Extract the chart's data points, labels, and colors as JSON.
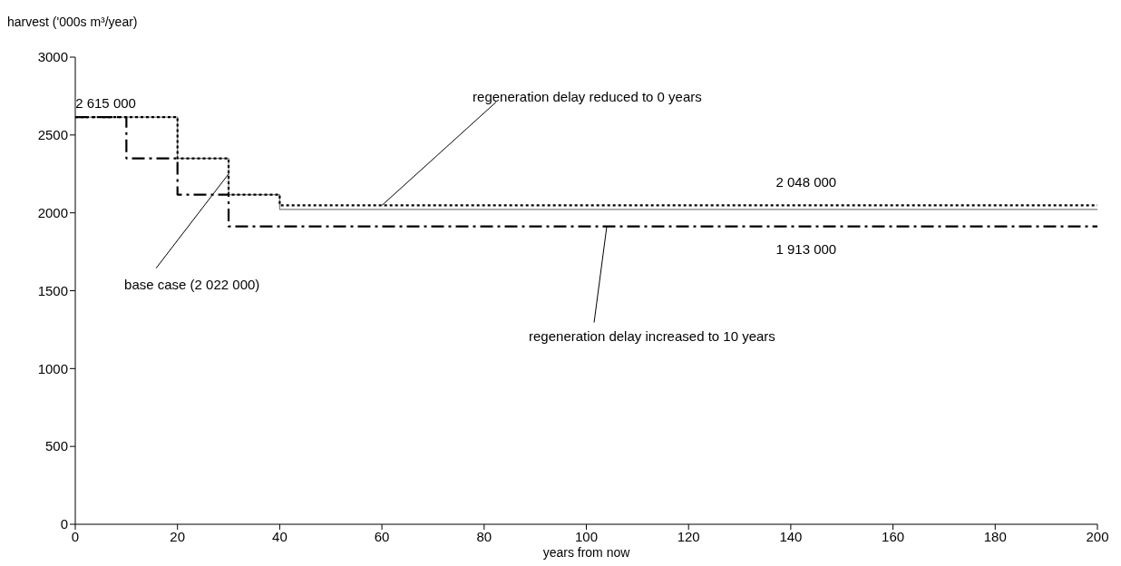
{
  "chart_data": {
    "type": "step",
    "xlabel": "years from now",
    "ylabel": "harvest ('000s m³/year)",
    "xlim": [
      0,
      200
    ],
    "xticks": [
      0,
      20,
      40,
      60,
      80,
      100,
      120,
      140,
      160,
      180,
      200
    ],
    "ylim": [
      0,
      3000
    ],
    "yticks": [
      0,
      500,
      1000,
      1500,
      2000,
      2500,
      3000
    ],
    "series": [
      {
        "color": "#808080",
        "line_style": "solid",
        "x": [
          0,
          20,
          30,
          40,
          200
        ],
        "values": [
          2615,
          2350,
          2117,
          2022,
          2022
        ]
      },
      {
        "color": "#000000",
        "line_style": "dotted",
        "x": [
          0,
          20,
          30,
          40,
          200
        ],
        "values": [
          2615,
          2350,
          2117,
          2048,
          2048
        ]
      },
      {
        "color": "#000000",
        "line_style": "dashed",
        "x": [
          0,
          10,
          20,
          30,
          200
        ],
        "values": [
          2615,
          2350,
          2117,
          1913,
          1913
        ]
      }
    ],
    "annotations": [
      {
        "text": "2 615 000",
        "x": 5,
        "y": 2615
      },
      {
        "text": "regeneration delay reduced to 0 years",
        "x": 60,
        "y": 2048
      },
      {
        "text": "2 048 000",
        "x": 143,
        "y": 2048
      },
      {
        "text": "1 913 000",
        "x": 143,
        "y": 1913
      },
      {
        "text": "base case (2 022 000)",
        "x": 30,
        "y": 2250
      },
      {
        "text": "regeneration delay increased to 10 years",
        "x": 104,
        "y": 1913
      }
    ]
  }
}
